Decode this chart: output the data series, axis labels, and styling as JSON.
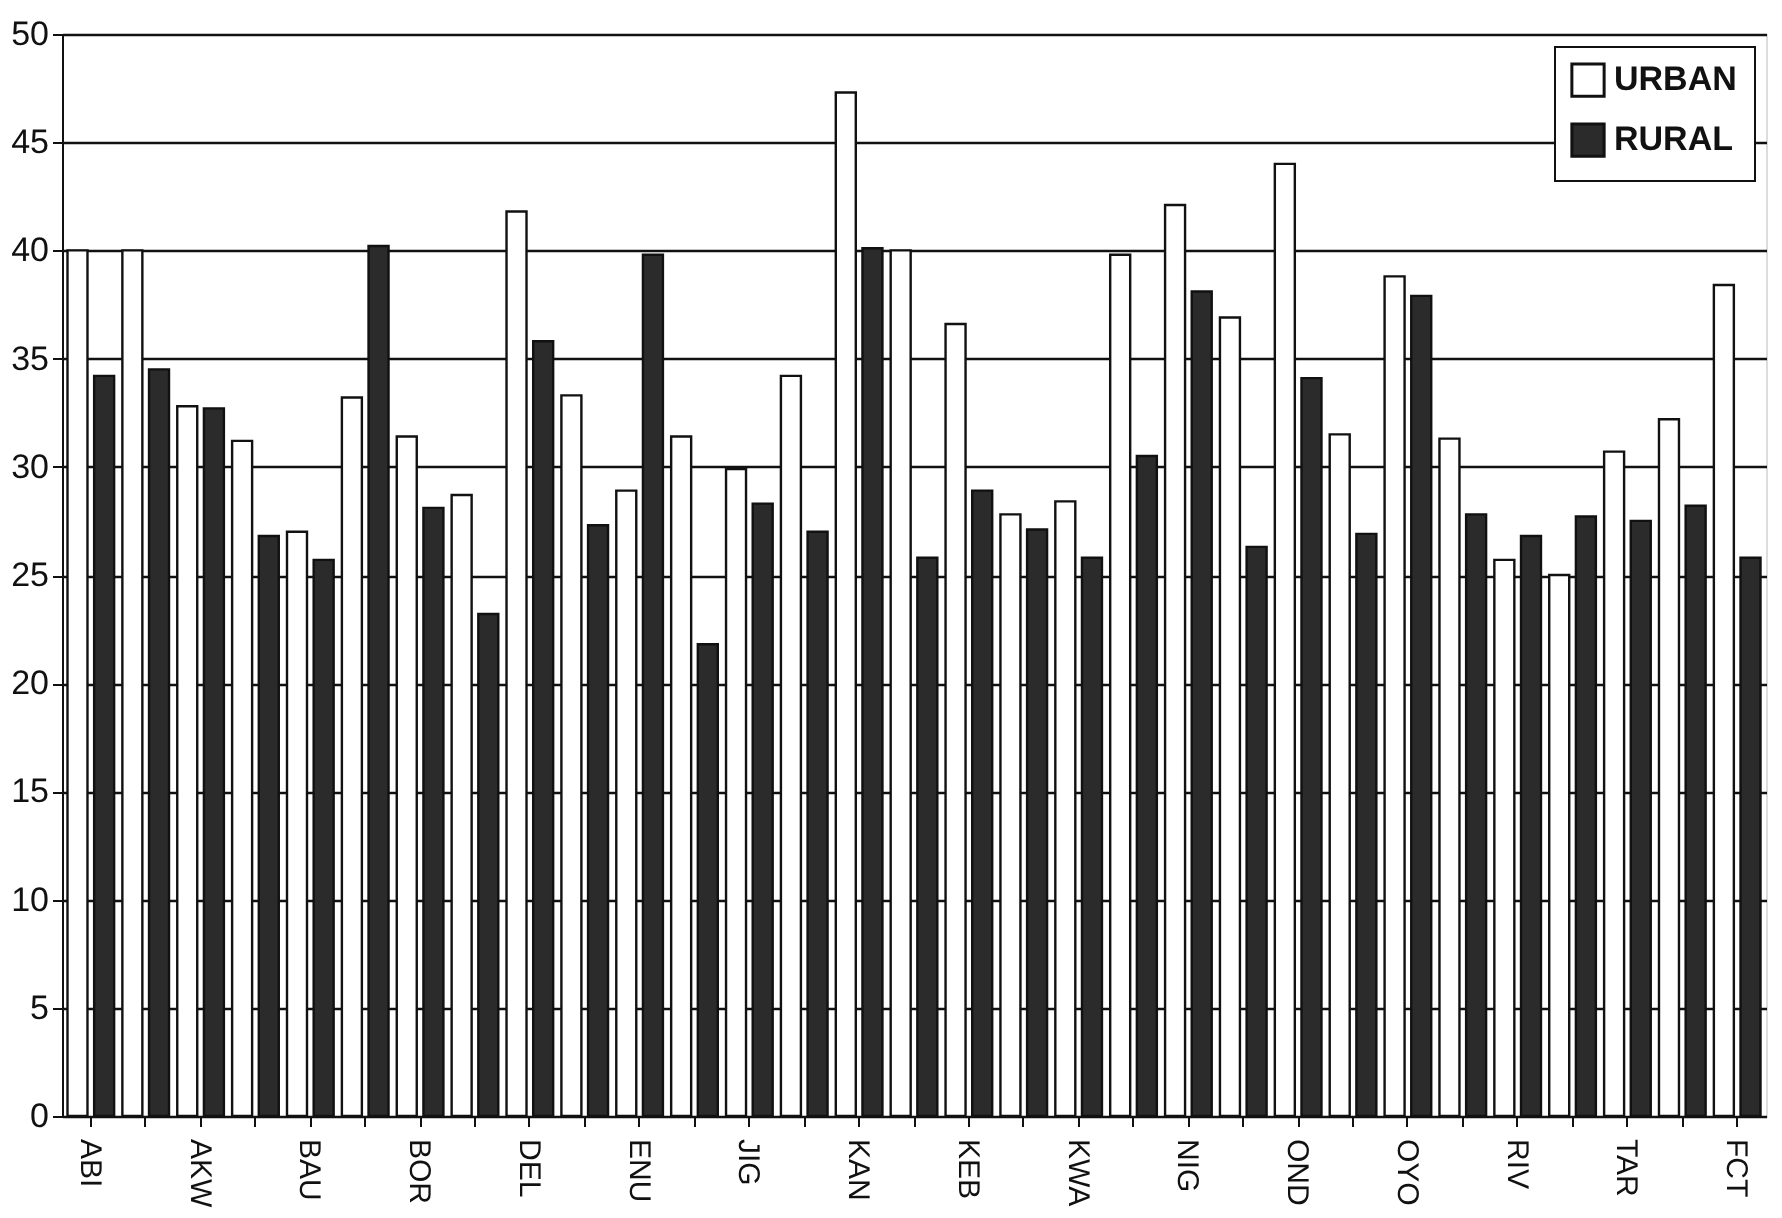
{
  "chart_data": {
    "type": "bar",
    "categories": [
      "ABI",
      null,
      "AKW",
      null,
      "BAU",
      null,
      "BOR",
      null,
      "DEL",
      null,
      "ENU",
      null,
      "JIG",
      null,
      "KAN",
      null,
      "KEB",
      null,
      "KWA",
      null,
      "NIG",
      null,
      "OND",
      null,
      "OYO",
      null,
      "RIV",
      null,
      "TAR",
      null,
      "FCT"
    ],
    "series": [
      {
        "name": "URBAN",
        "color": "#ffffff",
        "values": [
          40,
          40,
          32.8,
          31.2,
          27,
          33.2,
          31.4,
          28.7,
          41.8,
          33.3,
          28.9,
          31.4,
          29.9,
          34.2,
          47.3,
          40,
          36.6,
          27.8,
          28.4,
          39.8,
          42.1,
          36.9,
          44,
          31.5,
          38.8,
          31.3,
          25.7,
          25,
          30.7,
          32.2,
          38.4
        ]
      },
      {
        "name": "RURAL",
        "color": "#2b2b2b",
        "values": [
          34.2,
          34.5,
          32.7,
          26.8,
          25.7,
          40.2,
          28.1,
          23.2,
          35.8,
          27.3,
          39.8,
          21.8,
          28.3,
          27,
          40.1,
          25.8,
          28.9,
          27.1,
          25.8,
          30.5,
          38.1,
          26.3,
          34.1,
          26.9,
          37.9,
          27.8,
          26.8,
          27.7,
          27.5,
          28.2,
          25.8
        ]
      }
    ],
    "ylim": [
      0,
      50
    ],
    "yticks": [
      0,
      5,
      10,
      15,
      20,
      25,
      30,
      35,
      40,
      45,
      50
    ],
    "grid": "y",
    "legend": "top right"
  }
}
